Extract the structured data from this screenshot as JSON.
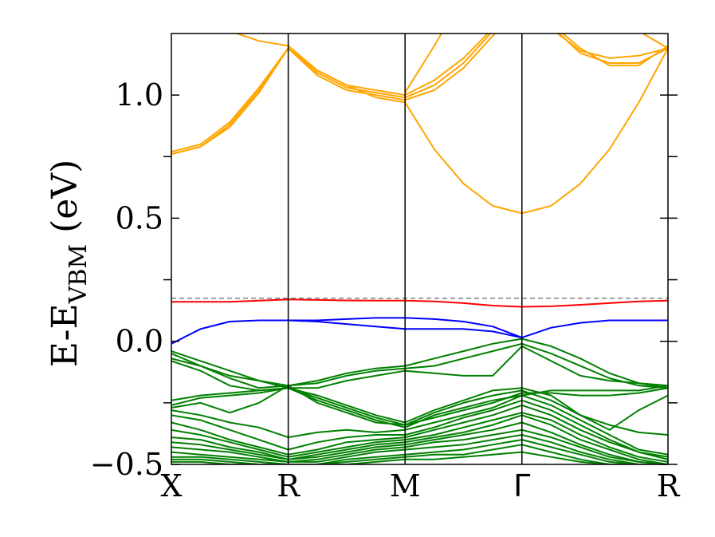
{
  "chart_data": {
    "type": "line",
    "title": "",
    "ylabel": {
      "main": "E-E",
      "subscript": "VBM",
      "unit": " (eV)"
    },
    "ylim": [
      -0.5,
      1.25
    ],
    "yticks": [
      {
        "value": 1.0,
        "label": "1.0"
      },
      {
        "value": 0.5,
        "label": "0.5"
      },
      {
        "value": 0.0,
        "label": "0.0"
      },
      {
        "value": -0.5,
        "label": "−0.5"
      }
    ],
    "yminor_ticks": [
      0.75,
      0.25,
      -0.25
    ],
    "kpath": [
      {
        "x": 0,
        "label": "X"
      },
      {
        "x": 4,
        "label": "R"
      },
      {
        "x": 8,
        "label": "M"
      },
      {
        "x": 12,
        "label": "Γ"
      },
      {
        "x": 17,
        "label": "R"
      }
    ],
    "reference_line": {
      "y": 0.175,
      "color": "#808080",
      "style": "dashed"
    },
    "colors": {
      "conduction": "#ffa500",
      "defect_upper": "#ff0000",
      "defect_lower": "#0000ff",
      "valence": "#008000"
    },
    "series": [
      {
        "group": "conduction",
        "x": [
          0,
          1,
          2,
          3,
          4,
          5,
          6,
          7,
          8,
          9,
          10,
          11,
          12,
          13,
          14,
          15,
          16,
          17
        ],
        "y": [
          0.76,
          0.79,
          0.87,
          1.01,
          1.19,
          1.08,
          1.02,
          1.0,
          0.98,
          1.02,
          1.11,
          1.24,
          1.37,
          1.27,
          1.18,
          1.15,
          1.16,
          1.19
        ]
      },
      {
        "group": "conduction",
        "x": [
          0,
          1,
          2,
          3,
          4,
          5,
          6,
          7,
          8,
          9,
          10,
          11,
          12,
          13,
          14,
          15,
          16,
          17
        ],
        "y": [
          0.76,
          0.79,
          0.88,
          1.02,
          1.19,
          1.09,
          1.03,
          1.01,
          0.99,
          1.04,
          1.13,
          1.26,
          1.38,
          1.28,
          1.17,
          1.13,
          1.13,
          1.19
        ]
      },
      {
        "group": "conduction",
        "x": [
          0,
          1,
          2,
          3,
          4,
          5,
          6,
          7,
          8,
          9,
          10,
          11,
          12,
          13,
          14,
          15,
          16,
          17
        ],
        "y": [
          0.77,
          0.8,
          0.89,
          1.03,
          1.19,
          1.1,
          1.04,
          1.02,
          1.0,
          1.06,
          1.15,
          1.27,
          1.4,
          1.29,
          1.19,
          1.12,
          1.12,
          1.2
        ]
      },
      {
        "group": "conduction",
        "x": [
          0,
          1,
          2,
          3,
          4,
          5,
          6,
          7,
          8,
          9,
          10,
          11,
          12
        ],
        "y": [
          1.4,
          1.32,
          1.26,
          1.22,
          1.2,
          1.1,
          1.04,
          0.99,
          0.97,
          0.78,
          0.64,
          0.55,
          0.52
        ]
      },
      {
        "group": "conduction",
        "x": [
          12,
          13,
          14,
          15,
          16,
          17
        ],
        "y": [
          0.52,
          0.55,
          0.64,
          0.78,
          0.97,
          1.19
        ]
      },
      {
        "group": "conduction",
        "x": [
          3,
          4,
          5
        ],
        "y": [
          1.29,
          1.25,
          1.3
        ]
      },
      {
        "group": "conduction",
        "x": [
          8,
          9,
          10
        ],
        "y": [
          1.01,
          1.2,
          1.4
        ]
      },
      {
        "group": "conduction",
        "x": [
          16,
          17
        ],
        "y": [
          1.26,
          1.19
        ]
      },
      {
        "group": "defect_upper",
        "x": [
          0,
          1,
          2,
          3,
          4,
          5,
          6,
          7,
          8,
          9,
          10,
          11,
          12,
          13,
          14,
          15,
          16,
          17
        ],
        "y": [
          0.16,
          0.16,
          0.16,
          0.165,
          0.17,
          0.168,
          0.166,
          0.165,
          0.165,
          0.162,
          0.155,
          0.145,
          0.14,
          0.142,
          0.148,
          0.155,
          0.162,
          0.165
        ]
      },
      {
        "group": "defect_lower",
        "x": [
          0,
          0.5,
          1,
          2,
          3,
          4,
          5,
          6,
          7,
          8,
          9,
          10,
          11,
          12
        ],
        "y": [
          -0.01,
          0.02,
          0.05,
          0.08,
          0.085,
          0.085,
          0.085,
          0.09,
          0.095,
          0.095,
          0.09,
          0.08,
          0.06,
          0.015
        ]
      },
      {
        "group": "defect_lower",
        "x": [
          12,
          13,
          14,
          15,
          16,
          17
        ],
        "y": [
          0.015,
          0.055,
          0.075,
          0.085,
          0.085,
          0.085
        ]
      },
      {
        "group": "defect_lower",
        "x": [
          4,
          5,
          6,
          7,
          8,
          9,
          10,
          11,
          12
        ],
        "y": [
          0.085,
          0.08,
          0.07,
          0.06,
          0.05,
          0.05,
          0.05,
          0.04,
          0.015
        ]
      },
      {
        "group": "valence",
        "x": [
          0,
          1,
          2,
          3,
          4,
          5,
          6,
          7,
          8,
          9,
          10,
          11,
          12,
          13,
          14,
          15,
          16,
          17
        ],
        "y": [
          -0.04,
          -0.08,
          -0.12,
          -0.16,
          -0.18,
          -0.16,
          -0.13,
          -0.11,
          -0.1,
          -0.07,
          -0.04,
          -0.01,
          0.01,
          -0.02,
          -0.07,
          -0.13,
          -0.17,
          -0.18
        ]
      },
      {
        "group": "valence",
        "x": [
          0,
          1,
          2,
          3,
          4,
          5,
          6,
          7,
          8,
          9,
          10,
          11,
          12,
          13,
          14,
          15,
          16,
          17
        ],
        "y": [
          -0.05,
          -0.1,
          -0.15,
          -0.19,
          -0.18,
          -0.17,
          -0.14,
          -0.12,
          -0.11,
          -0.1,
          -0.07,
          -0.04,
          -0.01,
          -0.05,
          -0.1,
          -0.15,
          -0.18,
          -0.19
        ]
      },
      {
        "group": "valence",
        "x": [
          0,
          1,
          2,
          3,
          4,
          5,
          6,
          7,
          8,
          9,
          10,
          11,
          12,
          13,
          14,
          15,
          16,
          17
        ],
        "y": [
          -0.07,
          -0.1,
          -0.14,
          -0.16,
          -0.19,
          -0.19,
          -0.16,
          -0.14,
          -0.12,
          -0.13,
          -0.14,
          -0.14,
          -0.02,
          -0.08,
          -0.14,
          -0.16,
          -0.17,
          -0.19
        ]
      },
      {
        "group": "valence",
        "x": [
          0,
          1,
          2,
          3,
          4,
          5,
          6,
          7,
          8,
          9,
          10,
          11,
          12,
          13,
          14,
          15,
          16,
          17
        ],
        "y": [
          -0.08,
          -0.12,
          -0.18,
          -0.2,
          -0.19,
          -0.22,
          -0.26,
          -0.3,
          -0.33,
          -0.28,
          -0.24,
          -0.2,
          -0.19,
          -0.22,
          -0.3,
          -0.36,
          -0.28,
          -0.22
        ]
      },
      {
        "group": "valence",
        "x": [
          0,
          1,
          2,
          3,
          4,
          5,
          6,
          7,
          8,
          9,
          10,
          11,
          12,
          13,
          14,
          15,
          16,
          17
        ],
        "y": [
          -0.24,
          -0.22,
          -0.21,
          -0.2,
          -0.19,
          -0.23,
          -0.27,
          -0.31,
          -0.34,
          -0.31,
          -0.28,
          -0.25,
          -0.21,
          -0.21,
          -0.22,
          -0.22,
          -0.21,
          -0.19
        ]
      },
      {
        "group": "valence",
        "x": [
          0,
          1,
          2,
          3,
          4,
          5,
          6,
          7,
          8,
          9,
          10,
          11,
          12,
          13,
          14,
          15,
          16,
          17
        ],
        "y": [
          -0.26,
          -0.23,
          -0.22,
          -0.21,
          -0.19,
          -0.24,
          -0.28,
          -0.32,
          -0.35,
          -0.3,
          -0.27,
          -0.24,
          -0.22,
          -0.2,
          -0.2,
          -0.2,
          -0.2,
          -0.18
        ]
      },
      {
        "group": "valence",
        "x": [
          0,
          1,
          2,
          3,
          4,
          5,
          6,
          7,
          8,
          9,
          10,
          11,
          12,
          13,
          14,
          15,
          16,
          17
        ],
        "y": [
          -0.27,
          -0.25,
          -0.29,
          -0.25,
          -0.18,
          -0.25,
          -0.29,
          -0.33,
          -0.34,
          -0.29,
          -0.25,
          -0.22,
          -0.2,
          -0.24,
          -0.3,
          -0.34,
          -0.37,
          -0.38
        ]
      },
      {
        "group": "valence",
        "x": [
          0,
          1,
          2,
          3,
          4,
          5,
          6,
          7,
          8,
          9,
          10,
          11,
          12,
          13,
          14,
          15,
          16,
          17
        ],
        "y": [
          -0.28,
          -0.3,
          -0.33,
          -0.35,
          -0.39,
          -0.37,
          -0.36,
          -0.37,
          -0.36,
          -0.33,
          -0.3,
          -0.27,
          -0.22,
          -0.26,
          -0.32,
          -0.38,
          -0.44,
          -0.46
        ]
      },
      {
        "group": "valence",
        "x": [
          0,
          1,
          2,
          3,
          4,
          5,
          6,
          7,
          8,
          9,
          10,
          11,
          12,
          13,
          14,
          15,
          16,
          17
        ],
        "y": [
          -0.3,
          -0.32,
          -0.36,
          -0.4,
          -0.44,
          -0.41,
          -0.39,
          -0.38,
          -0.38,
          -0.35,
          -0.31,
          -0.28,
          -0.24,
          -0.28,
          -0.34,
          -0.4,
          -0.45,
          -0.47
        ]
      },
      {
        "group": "valence",
        "x": [
          0,
          1,
          2,
          3,
          4,
          5,
          6,
          7,
          8,
          9,
          10,
          11,
          12,
          13,
          14,
          15,
          16,
          17
        ],
        "y": [
          -0.33,
          -0.36,
          -0.4,
          -0.43,
          -0.46,
          -0.44,
          -0.41,
          -0.4,
          -0.39,
          -0.36,
          -0.33,
          -0.3,
          -0.26,
          -0.3,
          -0.36,
          -0.41,
          -0.45,
          -0.48
        ]
      },
      {
        "group": "valence",
        "x": [
          0,
          1,
          2,
          3,
          4,
          5,
          6,
          7,
          8,
          9,
          10,
          11,
          12,
          13,
          14,
          15,
          16,
          17
        ],
        "y": [
          -0.36,
          -0.38,
          -0.41,
          -0.44,
          -0.47,
          -0.45,
          -0.43,
          -0.41,
          -0.4,
          -0.38,
          -0.35,
          -0.32,
          -0.29,
          -0.32,
          -0.38,
          -0.43,
          -0.47,
          -0.49
        ]
      },
      {
        "group": "valence",
        "x": [
          0,
          1,
          2,
          3,
          4,
          5,
          6,
          7,
          8,
          9,
          10,
          11,
          12,
          13,
          14,
          15,
          16,
          17
        ],
        "y": [
          -0.39,
          -0.4,
          -0.43,
          -0.45,
          -0.48,
          -0.46,
          -0.44,
          -0.42,
          -0.41,
          -0.39,
          -0.37,
          -0.34,
          -0.3,
          -0.34,
          -0.4,
          -0.44,
          -0.48,
          -0.5
        ]
      },
      {
        "group": "valence",
        "x": [
          0,
          1,
          2,
          3,
          4,
          5,
          6,
          7,
          8,
          9,
          10,
          11,
          12,
          13,
          14,
          15,
          16,
          17
        ],
        "y": [
          -0.41,
          -0.42,
          -0.44,
          -0.46,
          -0.48,
          -0.47,
          -0.45,
          -0.43,
          -0.42,
          -0.4,
          -0.38,
          -0.36,
          -0.33,
          -0.37,
          -0.42,
          -0.46,
          -0.49,
          -0.5
        ]
      },
      {
        "group": "valence",
        "x": [
          0,
          1,
          2,
          3,
          4,
          5,
          6,
          7,
          8,
          9,
          10,
          11,
          12,
          13,
          14,
          15,
          16,
          17
        ],
        "y": [
          -0.43,
          -0.44,
          -0.45,
          -0.47,
          -0.49,
          -0.48,
          -0.46,
          -0.44,
          -0.43,
          -0.41,
          -0.4,
          -0.38,
          -0.36,
          -0.39,
          -0.43,
          -0.47,
          -0.49,
          -0.5
        ]
      },
      {
        "group": "valence",
        "x": [
          0,
          1,
          2,
          3,
          4,
          5,
          6,
          7,
          8,
          9,
          10,
          11,
          12,
          13,
          14,
          15,
          16,
          17
        ],
        "y": [
          -0.45,
          -0.46,
          -0.47,
          -0.48,
          -0.49,
          -0.49,
          -0.47,
          -0.45,
          -0.44,
          -0.43,
          -0.42,
          -0.4,
          -0.38,
          -0.41,
          -0.45,
          -0.48,
          -0.5,
          -0.5
        ]
      },
      {
        "group": "valence",
        "x": [
          0,
          1,
          2,
          3,
          4,
          5,
          6,
          7,
          8,
          9,
          10,
          11,
          12,
          13,
          14,
          15,
          16,
          17
        ],
        "y": [
          -0.47,
          -0.47,
          -0.48,
          -0.49,
          -0.5,
          -0.5,
          -0.48,
          -0.47,
          -0.46,
          -0.45,
          -0.44,
          -0.42,
          -0.4,
          -0.43,
          -0.46,
          -0.49,
          -0.5,
          -0.5
        ]
      },
      {
        "group": "valence",
        "x": [
          0,
          1,
          2,
          3,
          4,
          5,
          6,
          7,
          8,
          9,
          10,
          11,
          12,
          13,
          14,
          15,
          16,
          17
        ],
        "y": [
          -0.48,
          -0.48,
          -0.49,
          -0.5,
          -0.5,
          -0.5,
          -0.49,
          -0.48,
          -0.47,
          -0.46,
          -0.46,
          -0.44,
          -0.42,
          -0.45,
          -0.48,
          -0.5,
          -0.5,
          -0.5
        ]
      },
      {
        "group": "valence",
        "x": [
          0,
          1,
          2,
          3,
          4,
          5,
          6,
          7,
          8,
          9,
          10,
          11,
          12,
          13,
          14,
          15,
          16,
          17
        ],
        "y": [
          -0.49,
          -0.49,
          -0.5,
          -0.5,
          -0.5,
          -0.5,
          -0.5,
          -0.49,
          -0.48,
          -0.48,
          -0.47,
          -0.46,
          -0.45,
          -0.47,
          -0.49,
          -0.5,
          -0.5,
          -0.5
        ]
      }
    ]
  }
}
